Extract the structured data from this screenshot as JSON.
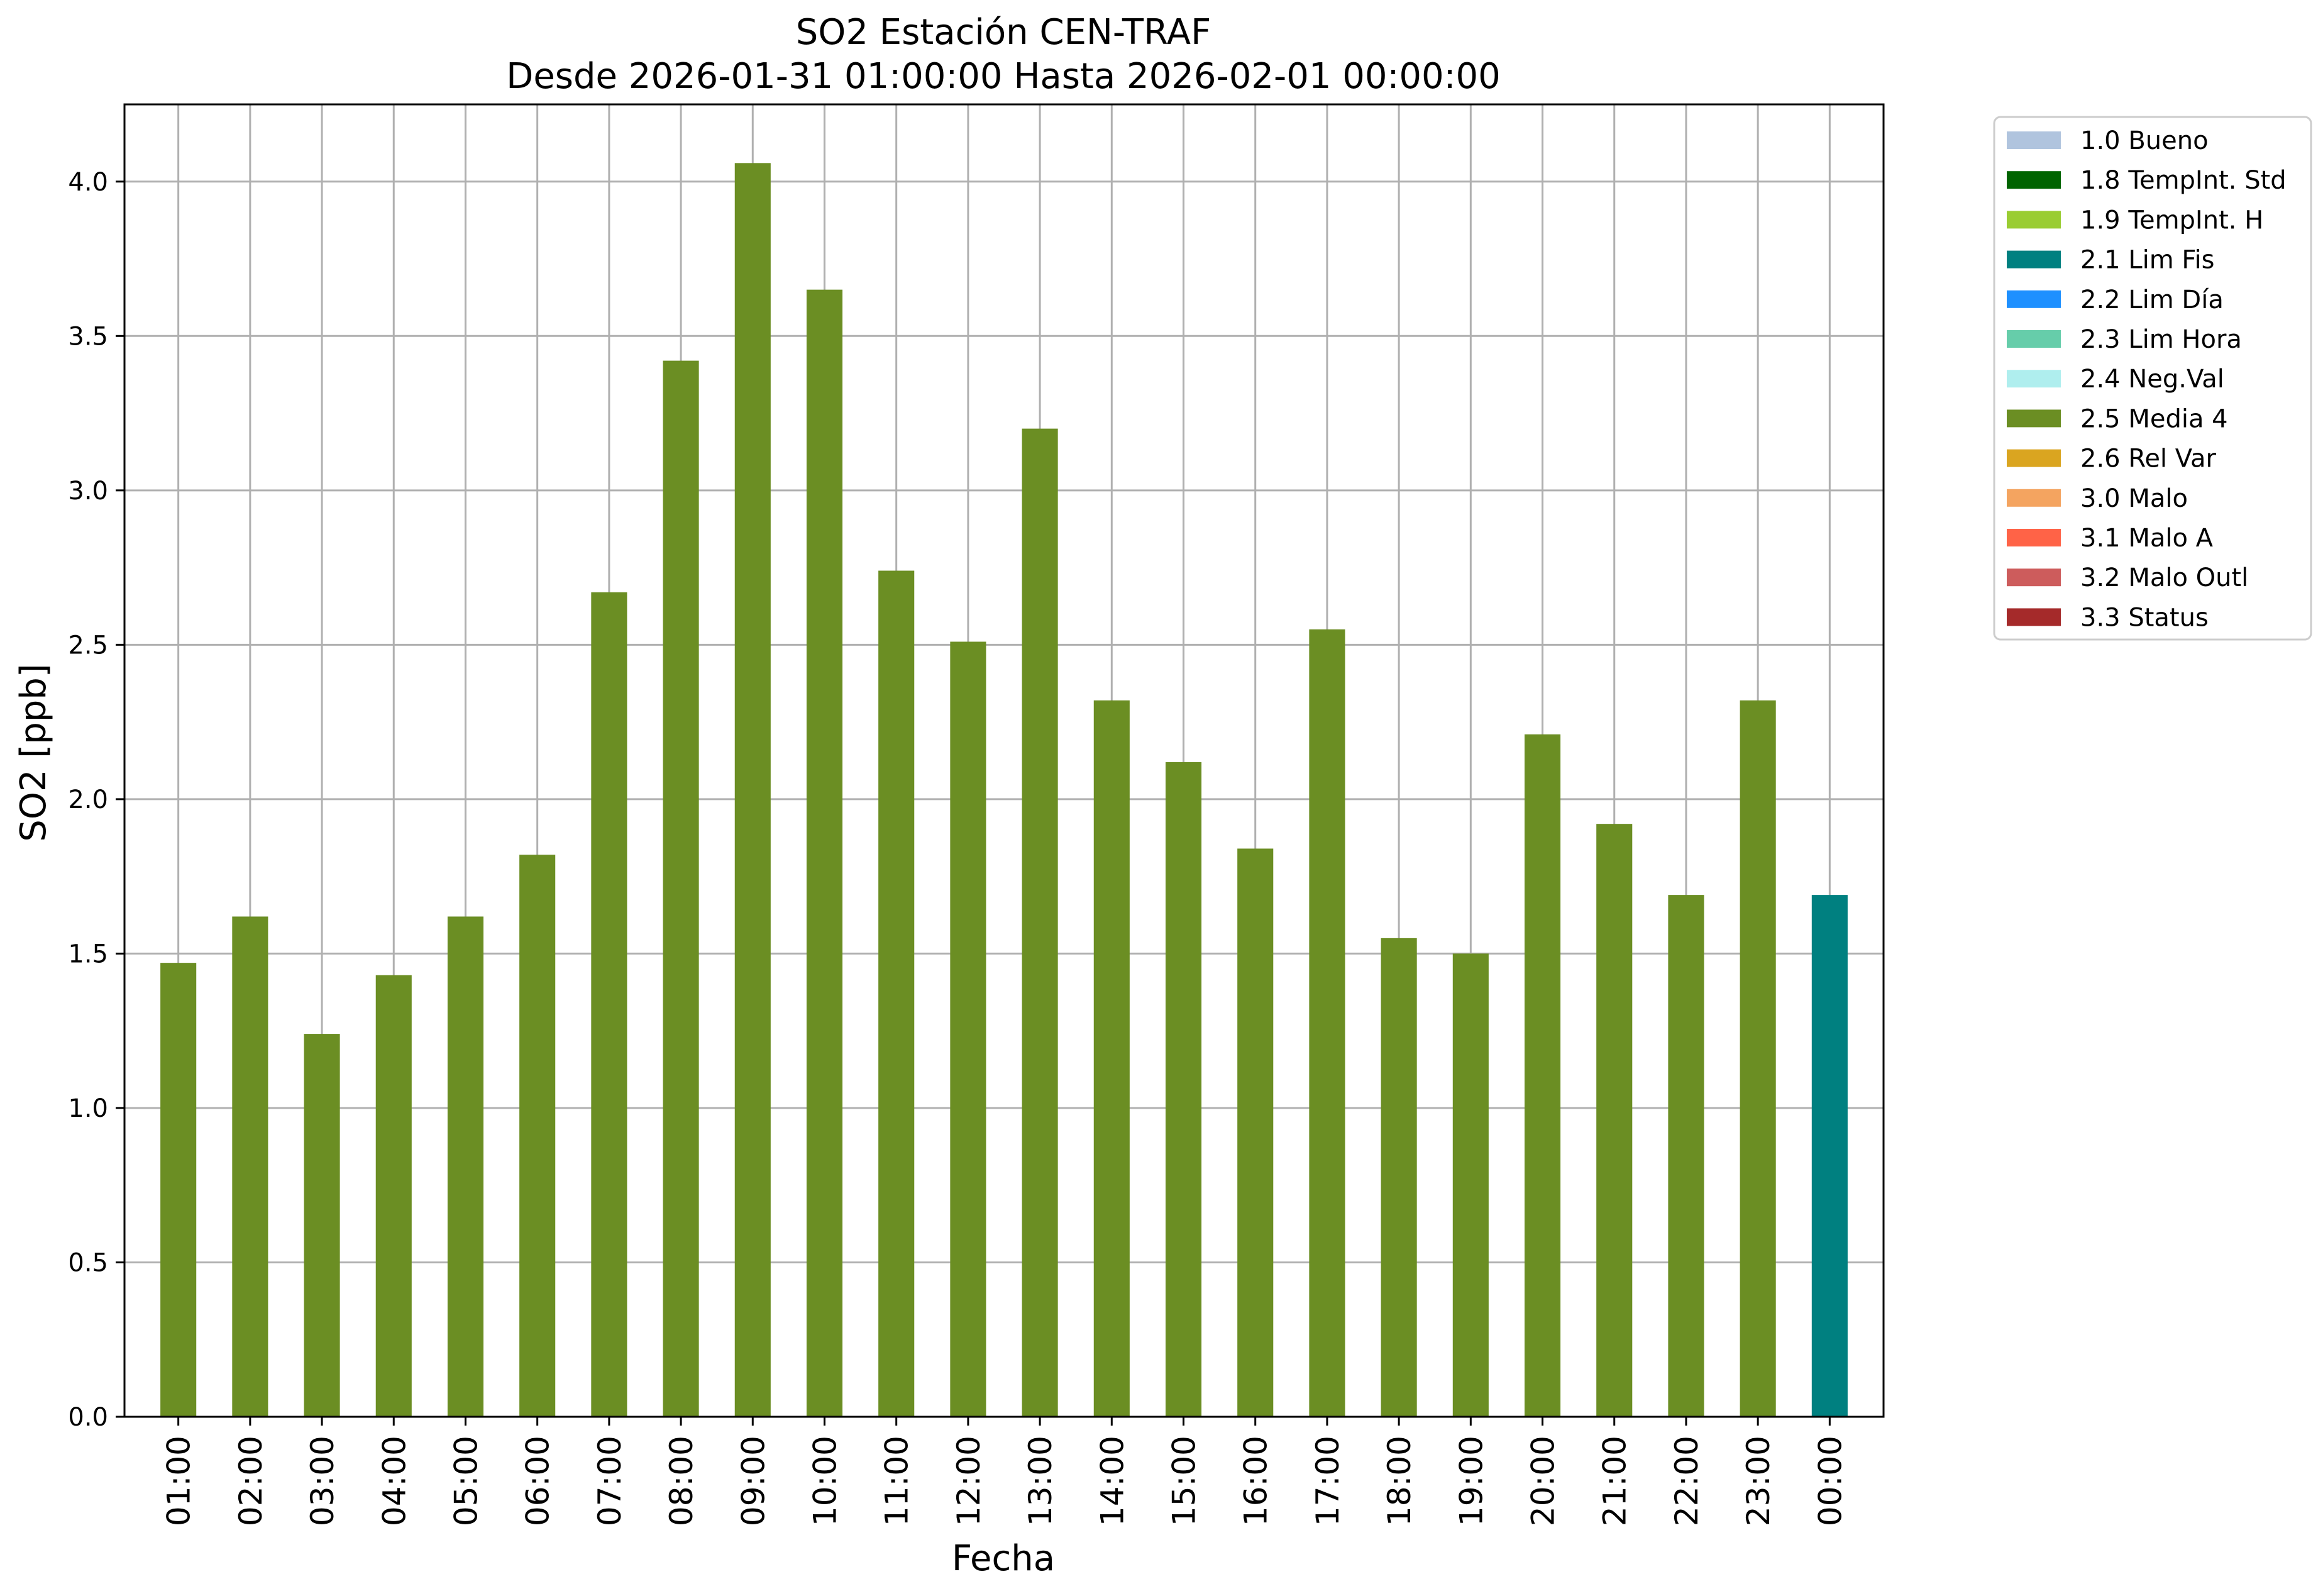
{
  "chart_data": {
    "type": "bar",
    "title": "SO2 Estación CEN-TRAF",
    "subtitle": "Desde 2026-01-31 01:00:00 Hasta 2026-02-01 00:00:00",
    "xlabel": "Fecha",
    "ylabel": "SO2 [ppb]",
    "ylim": [
      0,
      4.25
    ],
    "yticks": [
      "0.0",
      "0.5",
      "1.0",
      "1.5",
      "2.0",
      "2.5",
      "3.0",
      "3.5",
      "4.0"
    ],
    "grid": true,
    "legend_position": "outside-top-right",
    "categories": [
      "01:00",
      "02:00",
      "03:00",
      "04:00",
      "05:00",
      "06:00",
      "07:00",
      "08:00",
      "09:00",
      "10:00",
      "11:00",
      "12:00",
      "13:00",
      "14:00",
      "15:00",
      "16:00",
      "17:00",
      "18:00",
      "19:00",
      "20:00",
      "21:00",
      "22:00",
      "23:00",
      "00:00"
    ],
    "values": [
      1.47,
      1.62,
      1.24,
      1.43,
      1.62,
      1.82,
      2.67,
      3.42,
      4.06,
      3.65,
      2.74,
      2.51,
      3.2,
      2.32,
      2.12,
      1.84,
      2.55,
      1.55,
      1.5,
      2.21,
      1.92,
      1.69,
      2.32,
      1.69
    ],
    "bar_flags": [
      "2.5 Media 4",
      "2.5 Media 4",
      "2.5 Media 4",
      "2.5 Media 4",
      "2.5 Media 4",
      "2.5 Media 4",
      "2.5 Media 4",
      "2.5 Media 4",
      "2.5 Media 4",
      "2.5 Media 4",
      "2.5 Media 4",
      "2.5 Media 4",
      "2.5 Media 4",
      "2.5 Media 4",
      "2.5 Media 4",
      "2.5 Media 4",
      "2.5 Media 4",
      "2.5 Media 4",
      "2.5 Media 4",
      "2.5 Media 4",
      "2.5 Media 4",
      "2.5 Media 4",
      "2.5 Media 4",
      "2.1 Lim Fis"
    ],
    "legend": [
      {
        "label": "1.0 Bueno",
        "color": "#b0c4de"
      },
      {
        "label": "1.8 TempInt. Std",
        "color": "#006400"
      },
      {
        "label": "1.9 TempInt. H",
        "color": "#9acd32"
      },
      {
        "label": "2.1 Lim Fis",
        "color": "#008080"
      },
      {
        "label": "2.2 Lim Día",
        "color": "#1e90ff"
      },
      {
        "label": "2.3 Lim Hora",
        "color": "#66cdaa"
      },
      {
        "label": "2.4 Neg.Val",
        "color": "#afeeee"
      },
      {
        "label": "2.5 Media 4",
        "color": "#6b8e23"
      },
      {
        "label": "2.6 Rel Var",
        "color": "#daa520"
      },
      {
        "label": "3.0 Malo",
        "color": "#f4a460"
      },
      {
        "label": "3.1 Malo A",
        "color": "#ff6347"
      },
      {
        "label": "3.2 Malo Outl",
        "color": "#cd5c5c"
      },
      {
        "label": "3.3 Status",
        "color": "#a52a2a"
      }
    ]
  }
}
